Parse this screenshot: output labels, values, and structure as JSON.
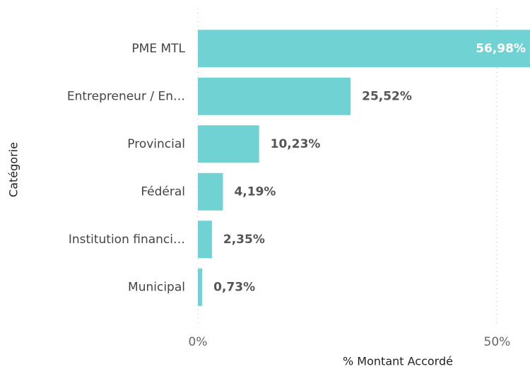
{
  "chart_data": {
    "type": "barh",
    "categories": [
      "PME MTL",
      "Entrepreneur / En…",
      "Provincial",
      "Fédéral",
      "Institution financi…",
      "Municipal"
    ],
    "values": [
      56.98,
      25.52,
      10.23,
      4.19,
      2.35,
      0.73
    ],
    "value_labels": [
      "56,98%",
      "25,52%",
      "10,23%",
      "4,19%",
      "2,35%",
      "0,73%"
    ],
    "color": "#70d2d3",
    "xlim": [
      0,
      55.5
    ],
    "xticks": [
      {
        "value": 0,
        "label": "0%"
      },
      {
        "value": 50,
        "label": "50%"
      }
    ],
    "grid": true,
    "xlabel": "% Montant Accordé",
    "ylabel": "Catégorie"
  }
}
